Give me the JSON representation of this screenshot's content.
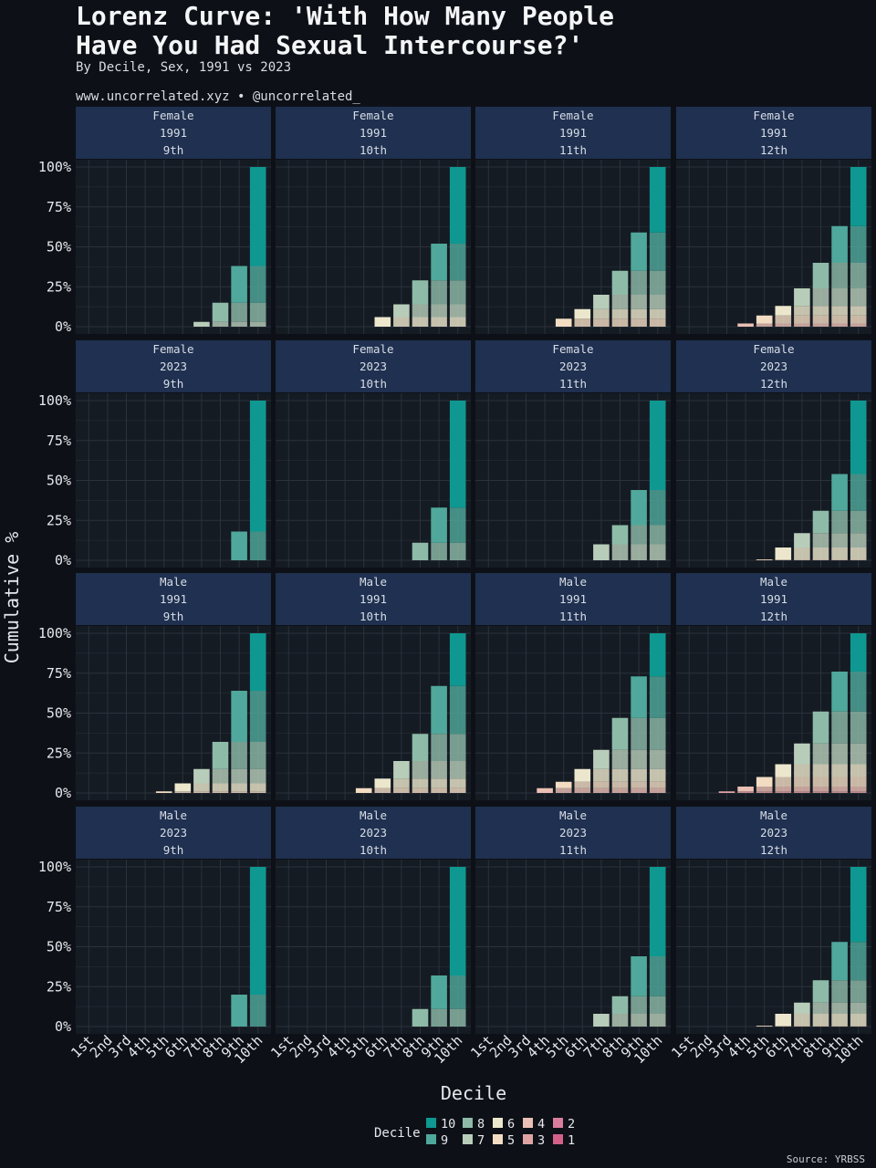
{
  "title": "Lorenz Curve: 'With How Many People\nHave You Had Sexual Intercourse?'",
  "subtitle": "By Decile, Sex, 1991 vs 2023",
  "credit": "www.uncorrelated.xyz • @uncorrelated_",
  "source": "Source: YRBSS",
  "colors": {
    "background": "#0d1117",
    "panel": "#151b23",
    "strip": "#1f3050",
    "grid": "#2b323b",
    "decile_1": "#d4608a",
    "decile_2": "#d97d9c",
    "decile_3": "#e0a3a3",
    "decile_4": "#eac0b4",
    "decile_5": "#f2dcc2",
    "decile_6": "#ece7cc",
    "decile_7": "#b7cdb9",
    "decile_8": "#8dbba8",
    "decile_9": "#4fa89b",
    "decile_10": "#0e9891"
  },
  "chart_data": {
    "type": "bar",
    "stacked": true,
    "xlabel": "Decile",
    "ylabel": "Cumulative %",
    "categories": [
      "1st",
      "2nd",
      "3rd",
      "4th",
      "5th",
      "6th",
      "7th",
      "8th",
      "9th",
      "10th"
    ],
    "y_ticks": [
      "0%",
      "25%",
      "50%",
      "75%",
      "100%"
    ],
    "ylim": [
      0,
      100
    ],
    "legend": {
      "title": "Decile",
      "position": "bottom",
      "rows": [
        [
          "10",
          "8",
          "6",
          "4",
          "2"
        ],
        [
          "9",
          "7",
          "5",
          "3",
          "1"
        ]
      ]
    },
    "panels": [
      {
        "sex": "Female",
        "year": "1991",
        "grade": "9th",
        "values": [
          0,
          0,
          0,
          0,
          0,
          0,
          3,
          15,
          38,
          100
        ]
      },
      {
        "sex": "Female",
        "year": "1991",
        "grade": "10th",
        "values": [
          0,
          0,
          0,
          0,
          0,
          6,
          14,
          29,
          52,
          100
        ]
      },
      {
        "sex": "Female",
        "year": "1991",
        "grade": "11th",
        "values": [
          0,
          0,
          0,
          0,
          5,
          11,
          20,
          35,
          59,
          100
        ]
      },
      {
        "sex": "Female",
        "year": "1991",
        "grade": "12th",
        "values": [
          0,
          0,
          0,
          2,
          7,
          13,
          24,
          40,
          63,
          100
        ]
      },
      {
        "sex": "Female",
        "year": "2023",
        "grade": "9th",
        "values": [
          0,
          0,
          0,
          0,
          0,
          0,
          0,
          0,
          18,
          100
        ]
      },
      {
        "sex": "Female",
        "year": "2023",
        "grade": "10th",
        "values": [
          0,
          0,
          0,
          0,
          0,
          0,
          0,
          11,
          33,
          100
        ]
      },
      {
        "sex": "Female",
        "year": "2023",
        "grade": "11th",
        "values": [
          0,
          0,
          0,
          0,
          0,
          0,
          10,
          22,
          44,
          100
        ]
      },
      {
        "sex": "Female",
        "year": "2023",
        "grade": "12th",
        "values": [
          0,
          0,
          0,
          0,
          0.5,
          8,
          17,
          31,
          54,
          100
        ]
      },
      {
        "sex": "Male",
        "year": "1991",
        "grade": "9th",
        "values": [
          0,
          0,
          0,
          0,
          1,
          6,
          15,
          32,
          64,
          100
        ]
      },
      {
        "sex": "Male",
        "year": "1991",
        "grade": "10th",
        "values": [
          0,
          0,
          0,
          0,
          3,
          9,
          20,
          37,
          67,
          100
        ]
      },
      {
        "sex": "Male",
        "year": "1991",
        "grade": "11th",
        "values": [
          0,
          0,
          0,
          3,
          7,
          15,
          27,
          47,
          73,
          100
        ]
      },
      {
        "sex": "Male",
        "year": "1991",
        "grade": "12th",
        "values": [
          0,
          0,
          1,
          4,
          10,
          18,
          31,
          51,
          76,
          100
        ]
      },
      {
        "sex": "Male",
        "year": "2023",
        "grade": "9th",
        "values": [
          0,
          0,
          0,
          0,
          0,
          0,
          0,
          0,
          20,
          100
        ]
      },
      {
        "sex": "Male",
        "year": "2023",
        "grade": "10th",
        "values": [
          0,
          0,
          0,
          0,
          0,
          0,
          0,
          11,
          32,
          100
        ]
      },
      {
        "sex": "Male",
        "year": "2023",
        "grade": "11th",
        "values": [
          0,
          0,
          0,
          0,
          0,
          0,
          8,
          19,
          44,
          100
        ]
      },
      {
        "sex": "Male",
        "year": "2023",
        "grade": "12th",
        "values": [
          0,
          0,
          0,
          0,
          0.5,
          8,
          15,
          29,
          53,
          100
        ]
      }
    ]
  }
}
